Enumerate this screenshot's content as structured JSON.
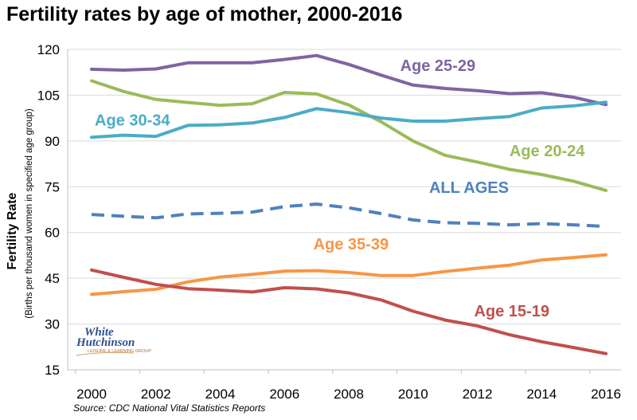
{
  "chart_data": {
    "type": "line",
    "title": "Fertility rates by age of mother, 2000-2016",
    "ylabel": "Fertility  Rate",
    "ylabel_sub": "(Births per thousand women in specified age group)",
    "xlabel": "",
    "xlim": [
      2000,
      2016
    ],
    "ylim": [
      15,
      120
    ],
    "xticks": [
      2000,
      2002,
      2004,
      2006,
      2008,
      2010,
      2012,
      2014,
      2016
    ],
    "yticks": [
      15,
      30,
      45,
      60,
      75,
      90,
      105,
      120
    ],
    "grid": "horizontal",
    "x": [
      2000,
      2001,
      2002,
      2003,
      2004,
      2005,
      2006,
      2007,
      2008,
      2009,
      2010,
      2011,
      2012,
      2013,
      2014,
      2015,
      2016
    ],
    "series": [
      {
        "name": "Age 25-29",
        "color": "#8064a2",
        "dashed": false,
        "values": [
          113.5,
          113.2,
          113.6,
          115.6,
          115.6,
          115.6,
          116.7,
          118.0,
          115.1,
          111.6,
          108.3,
          107.2,
          106.5,
          105.5,
          105.8,
          104.3,
          101.9
        ]
      },
      {
        "name": "Age 20-24",
        "color": "#9bbb59",
        "dashed": false,
        "values": [
          109.7,
          106.2,
          103.6,
          102.6,
          101.7,
          102.2,
          105.9,
          105.4,
          101.8,
          96.3,
          90.0,
          85.3,
          83.1,
          80.7,
          79.0,
          76.8,
          73.8
        ]
      },
      {
        "name": "Age 30-34",
        "color": "#4bacc6",
        "dashed": false,
        "values": [
          91.2,
          91.9,
          91.5,
          95.1,
          95.3,
          95.9,
          97.7,
          100.6,
          99.3,
          97.5,
          96.5,
          96.5,
          97.3,
          98.0,
          100.8,
          101.5,
          102.7
        ]
      },
      {
        "name": "ALL AGES",
        "color": "#4f81bd",
        "dashed": true,
        "values": [
          65.9,
          65.3,
          64.8,
          66.1,
          66.3,
          66.7,
          68.5,
          69.3,
          68.1,
          66.2,
          64.1,
          63.2,
          63.0,
          62.5,
          62.9,
          62.5,
          62.0
        ]
      },
      {
        "name": "Age 35-39",
        "color": "#f79646",
        "dashed": false,
        "values": [
          39.7,
          40.6,
          41.4,
          43.8,
          45.4,
          46.3,
          47.3,
          47.5,
          46.9,
          45.9,
          45.9,
          47.2,
          48.3,
          49.3,
          51.0,
          51.8,
          52.7
        ]
      },
      {
        "name": "Age 15-19",
        "color": "#c0504d",
        "dashed": false,
        "values": [
          47.7,
          45.3,
          43.0,
          41.6,
          41.1,
          40.5,
          41.9,
          41.5,
          40.2,
          37.9,
          34.2,
          31.3,
          29.4,
          26.5,
          24.2,
          22.3,
          20.3
        ]
      }
    ]
  },
  "source": "Source: CDC National Vital Statistics Reports",
  "logo": {
    "line1": "White",
    "line2": "Hutchinson",
    "line3": "LEISURE & LEARNING GROUP"
  }
}
